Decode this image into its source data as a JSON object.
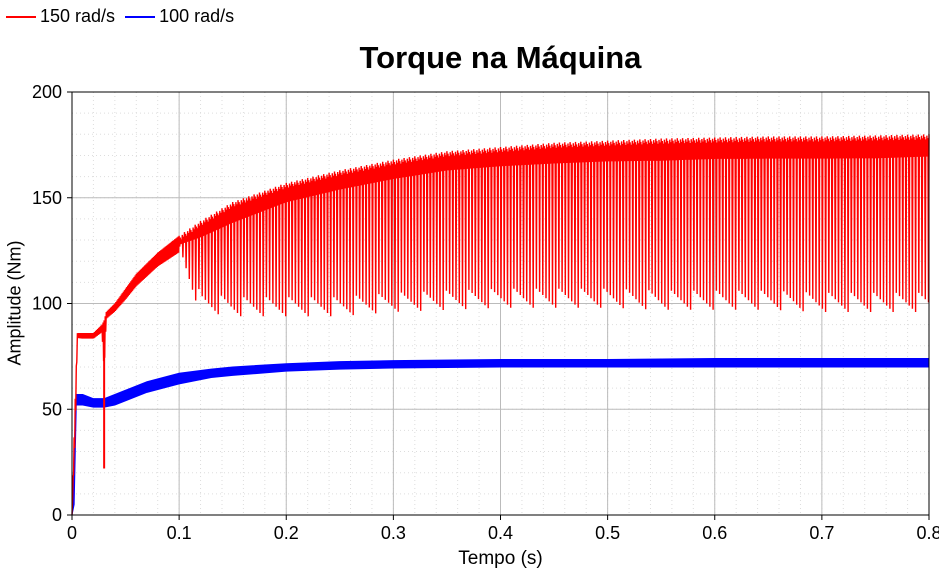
{
  "chart_data": {
    "type": "line",
    "title": "Torque na Máquina",
    "xlabel": "Tempo (s)",
    "ylabel": "Amplitude (Nm)",
    "xlim": [
      0,
      0.8
    ],
    "ylim": [
      0,
      200
    ],
    "x_ticks": [
      "0",
      "0.1",
      "0.2",
      "0.3",
      "0.4",
      "0.5",
      "0.6",
      "0.7",
      "0.8"
    ],
    "y_ticks": [
      "0",
      "50",
      "100",
      "150",
      "200"
    ],
    "grid": true,
    "legend_position": "top-left",
    "series": [
      {
        "name": "150 rad/s",
        "color": "#ff0000",
        "style": "oscillating band",
        "x": [
          0,
          0.003,
          0.005,
          0.01,
          0.02,
          0.028,
          0.03,
          0.032,
          0.04,
          0.05,
          0.06,
          0.08,
          0.1,
          0.12,
          0.15,
          0.2,
          0.25,
          0.3,
          0.35,
          0.4,
          0.45,
          0.5,
          0.55,
          0.6,
          0.65,
          0.7,
          0.75,
          0.8
        ],
        "upper": [
          0,
          55,
          86,
          86,
          86,
          90,
          92,
          96,
          100,
          107,
          114,
          124,
          132,
          139,
          148,
          157,
          163,
          168,
          172,
          174,
          176,
          177,
          178,
          178.5,
          179,
          179,
          179.5,
          180
        ],
        "lower": [
          0,
          10,
          83,
          82,
          82,
          85,
          22,
          90,
          92,
          97,
          104,
          114,
          120,
          96,
          94,
          94,
          94,
          96,
          97,
          98,
          98,
          98,
          97,
          97,
          97,
          96,
          96,
          96
        ],
        "mean": [
          0,
          50,
          84,
          84,
          84,
          87,
          88,
          94,
          98,
          104,
          110,
          119,
          126,
          128,
          134,
          144,
          150,
          155,
          159,
          161,
          162,
          163,
          163,
          164,
          164,
          164,
          164,
          165
        ]
      },
      {
        "name": "100 rad/s",
        "color": "#0000ff",
        "style": "thick band",
        "x": [
          0,
          0.002,
          0.004,
          0.01,
          0.02,
          0.03,
          0.04,
          0.05,
          0.07,
          0.1,
          0.13,
          0.15,
          0.2,
          0.25,
          0.3,
          0.4,
          0.5,
          0.6,
          0.7,
          0.8
        ],
        "upper": [
          0,
          30,
          57,
          57,
          55,
          55,
          57,
          59,
          63,
          67,
          69,
          70,
          71.5,
          72.5,
          73,
          73.5,
          73.5,
          74,
          74,
          74
        ],
        "lower": [
          0,
          5,
          52,
          52,
          51,
          51,
          52,
          54,
          58,
          62,
          65,
          66,
          68,
          69,
          69.5,
          70,
          70,
          70,
          70,
          70
        ],
        "mean": [
          0,
          20,
          55,
          55,
          53,
          53,
          55,
          57,
          61,
          65,
          67,
          68,
          70,
          71,
          71.5,
          72,
          72,
          72,
          72,
          72
        ]
      }
    ]
  }
}
